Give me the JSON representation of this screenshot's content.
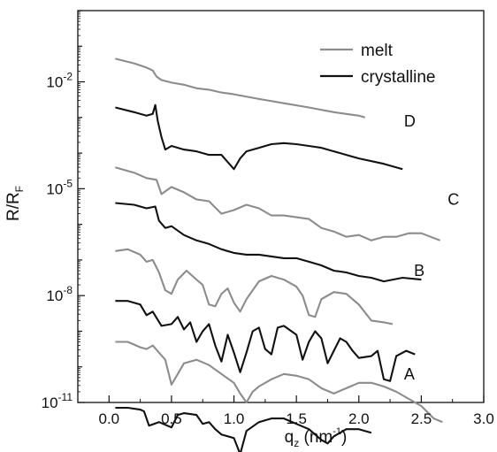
{
  "chart_data": {
    "type": "line",
    "xlabel": {
      "main": "q",
      "sub": "z",
      "unit_open": " (nm",
      "unit_sup": "-1",
      "unit_close": ")"
    },
    "ylabel": {
      "main": "R/R",
      "sub": "F"
    },
    "xlim": [
      -0.25,
      3.0
    ],
    "ylim_log10": [
      -11,
      0
    ],
    "log_y": true,
    "x_ticks": [
      {
        "value": 0.0,
        "label": "0.0"
      },
      {
        "value": 0.5,
        "label": "0.5"
      },
      {
        "value": 1.0,
        "label": "1.0"
      },
      {
        "value": 1.5,
        "label": "1.5"
      },
      {
        "value": 2.0,
        "label": "2.0"
      },
      {
        "value": 2.5,
        "label": "2.5"
      },
      {
        "value": 3.0,
        "label": "3.0"
      }
    ],
    "y_ticks": [
      {
        "exp": -11,
        "base": "10",
        "label": "-11"
      },
      {
        "exp": -8,
        "base": "10",
        "label": "-8"
      },
      {
        "exp": -5,
        "base": "10",
        "label": "-5"
      },
      {
        "exp": -2,
        "base": "10",
        "label": "-2"
      }
    ],
    "legend": {
      "placement": "top-right",
      "entries": [
        {
          "label": "melt",
          "color": "#8c8c8c"
        },
        {
          "label": "crystalline",
          "color": "#111111"
        }
      ]
    },
    "annotations": [
      {
        "text": "D",
        "x": 2.22,
        "log10y": -3.1
      },
      {
        "text": "C",
        "x": 2.57,
        "log10y": -5.3
      },
      {
        "text": "B",
        "x": 2.3,
        "log10y": -7.3
      },
      {
        "text": "A",
        "x": 2.22,
        "log10y": -10.2
      }
    ],
    "series": [
      {
        "group": "D",
        "kind": "melt",
        "color": "#8c8c8c",
        "points": [
          [
            0.05,
            -1.35
          ],
          [
            0.2,
            -1.48
          ],
          [
            0.3,
            -1.6
          ],
          [
            0.35,
            -1.68
          ],
          [
            0.38,
            -1.85
          ],
          [
            0.42,
            -1.95
          ],
          [
            0.5,
            -2.02
          ],
          [
            0.6,
            -2.08
          ],
          [
            0.7,
            -2.18
          ],
          [
            0.8,
            -2.22
          ],
          [
            0.9,
            -2.3
          ],
          [
            1.0,
            -2.35
          ],
          [
            1.2,
            -2.48
          ],
          [
            1.4,
            -2.6
          ],
          [
            1.6,
            -2.72
          ],
          [
            1.8,
            -2.85
          ],
          [
            2.0,
            -2.95
          ],
          [
            2.05,
            -3.0
          ]
        ]
      },
      {
        "group": "D",
        "kind": "crystalline",
        "color": "#111111",
        "points": [
          [
            0.05,
            -2.72
          ],
          [
            0.2,
            -2.85
          ],
          [
            0.3,
            -2.95
          ],
          [
            0.35,
            -2.9
          ],
          [
            0.37,
            -2.65
          ],
          [
            0.39,
            -3.1
          ],
          [
            0.42,
            -3.55
          ],
          [
            0.45,
            -3.9
          ],
          [
            0.5,
            -3.8
          ],
          [
            0.6,
            -3.9
          ],
          [
            0.7,
            -3.95
          ],
          [
            0.8,
            -4.05
          ],
          [
            0.9,
            -4.05
          ],
          [
            1.0,
            -4.45
          ],
          [
            1.05,
            -4.15
          ],
          [
            1.1,
            -3.95
          ],
          [
            1.2,
            -3.85
          ],
          [
            1.3,
            -3.75
          ],
          [
            1.4,
            -3.72
          ],
          [
            1.5,
            -3.75
          ],
          [
            1.6,
            -3.8
          ],
          [
            1.7,
            -3.85
          ],
          [
            1.8,
            -3.95
          ],
          [
            1.9,
            -4.05
          ],
          [
            2.0,
            -4.15
          ],
          [
            2.2,
            -4.3
          ],
          [
            2.35,
            -4.45
          ]
        ]
      },
      {
        "group": "C",
        "kind": "melt",
        "color": "#8c8c8c",
        "points": [
          [
            0.05,
            -4.4
          ],
          [
            0.2,
            -4.55
          ],
          [
            0.3,
            -4.7
          ],
          [
            0.38,
            -4.75
          ],
          [
            0.42,
            -5.15
          ],
          [
            0.5,
            -4.95
          ],
          [
            0.6,
            -5.1
          ],
          [
            0.7,
            -5.3
          ],
          [
            0.8,
            -5.35
          ],
          [
            0.9,
            -5.7
          ],
          [
            1.0,
            -5.6
          ],
          [
            1.1,
            -5.45
          ],
          [
            1.2,
            -5.55
          ],
          [
            1.3,
            -5.75
          ],
          [
            1.4,
            -5.75
          ],
          [
            1.5,
            -5.8
          ],
          [
            1.6,
            -5.85
          ],
          [
            1.7,
            -6.1
          ],
          [
            1.8,
            -6.2
          ],
          [
            1.9,
            -6.35
          ],
          [
            2.0,
            -6.3
          ],
          [
            2.1,
            -6.45
          ],
          [
            2.2,
            -6.35
          ],
          [
            2.3,
            -6.35
          ],
          [
            2.4,
            -6.25
          ],
          [
            2.5,
            -6.25
          ],
          [
            2.65,
            -6.45
          ]
        ]
      },
      {
        "group": "C",
        "kind": "crystalline",
        "color": "#111111",
        "points": [
          [
            0.05,
            -5.4
          ],
          [
            0.2,
            -5.45
          ],
          [
            0.3,
            -5.55
          ],
          [
            0.37,
            -5.5
          ],
          [
            0.4,
            -5.9
          ],
          [
            0.45,
            -6.1
          ],
          [
            0.5,
            -6.05
          ],
          [
            0.6,
            -6.3
          ],
          [
            0.7,
            -6.45
          ],
          [
            0.8,
            -6.55
          ],
          [
            0.9,
            -6.7
          ],
          [
            1.0,
            -6.8
          ],
          [
            1.1,
            -6.85
          ],
          [
            1.2,
            -6.85
          ],
          [
            1.3,
            -6.9
          ],
          [
            1.4,
            -6.95
          ],
          [
            1.5,
            -6.95
          ],
          [
            1.6,
            -7.05
          ],
          [
            1.7,
            -7.15
          ],
          [
            1.8,
            -7.3
          ],
          [
            1.9,
            -7.35
          ],
          [
            2.0,
            -7.45
          ],
          [
            2.1,
            -7.5
          ],
          [
            2.2,
            -7.6
          ],
          [
            2.35,
            -7.5
          ],
          [
            2.5,
            -7.55
          ]
        ]
      },
      {
        "group": "B",
        "kind": "melt",
        "color": "#8c8c8c",
        "points": [
          [
            0.05,
            -6.75
          ],
          [
            0.15,
            -6.7
          ],
          [
            0.25,
            -6.85
          ],
          [
            0.3,
            -7.05
          ],
          [
            0.35,
            -7.0
          ],
          [
            0.4,
            -7.35
          ],
          [
            0.45,
            -7.85
          ],
          [
            0.5,
            -7.95
          ],
          [
            0.55,
            -7.55
          ],
          [
            0.62,
            -7.3
          ],
          [
            0.7,
            -7.55
          ],
          [
            0.75,
            -7.7
          ],
          [
            0.8,
            -8.25
          ],
          [
            0.85,
            -8.3
          ],
          [
            0.9,
            -7.95
          ],
          [
            0.95,
            -7.8
          ],
          [
            1.0,
            -8.2
          ],
          [
            1.05,
            -8.45
          ],
          [
            1.1,
            -8.1
          ],
          [
            1.2,
            -7.6
          ],
          [
            1.3,
            -7.45
          ],
          [
            1.4,
            -7.55
          ],
          [
            1.5,
            -7.75
          ],
          [
            1.55,
            -8.0
          ],
          [
            1.6,
            -8.55
          ],
          [
            1.65,
            -8.6
          ],
          [
            1.7,
            -8.1
          ],
          [
            1.8,
            -7.9
          ],
          [
            1.9,
            -7.95
          ],
          [
            2.0,
            -8.25
          ],
          [
            2.1,
            -8.7
          ],
          [
            2.2,
            -8.75
          ],
          [
            2.27,
            -8.8
          ]
        ]
      },
      {
        "group": "B",
        "kind": "crystalline",
        "color": "#111111",
        "points": [
          [
            0.05,
            -8.15
          ],
          [
            0.15,
            -8.15
          ],
          [
            0.25,
            -8.25
          ],
          [
            0.3,
            -8.55
          ],
          [
            0.35,
            -8.45
          ],
          [
            0.42,
            -8.85
          ],
          [
            0.5,
            -8.8
          ],
          [
            0.55,
            -8.6
          ],
          [
            0.6,
            -8.95
          ],
          [
            0.65,
            -8.75
          ],
          [
            0.7,
            -9.3
          ],
          [
            0.75,
            -9.0
          ],
          [
            0.8,
            -8.8
          ],
          [
            0.85,
            -9.4
          ],
          [
            0.9,
            -9.85
          ],
          [
            0.95,
            -9.1
          ],
          [
            1.0,
            -9.6
          ],
          [
            1.05,
            -10.15
          ],
          [
            1.1,
            -9.6
          ],
          [
            1.15,
            -9.0
          ],
          [
            1.2,
            -8.9
          ],
          [
            1.25,
            -9.5
          ],
          [
            1.3,
            -9.65
          ],
          [
            1.35,
            -8.9
          ],
          [
            1.4,
            -8.85
          ],
          [
            1.5,
            -9.1
          ],
          [
            1.55,
            -9.8
          ],
          [
            1.6,
            -9.3
          ],
          [
            1.65,
            -9.0
          ],
          [
            1.7,
            -9.2
          ],
          [
            1.75,
            -9.9
          ],
          [
            1.8,
            -9.55
          ],
          [
            1.85,
            -9.2
          ],
          [
            1.9,
            -9.3
          ],
          [
            1.95,
            -9.55
          ],
          [
            2.0,
            -9.75
          ],
          [
            2.1,
            -9.7
          ],
          [
            2.15,
            -9.55
          ],
          [
            2.2,
            -10.35
          ],
          [
            2.25,
            -10.4
          ],
          [
            2.3,
            -9.7
          ],
          [
            2.38,
            -9.55
          ],
          [
            2.45,
            -9.65
          ]
        ]
      },
      {
        "group": "A",
        "kind": "melt",
        "color": "#8c8c8c",
        "points": [
          [
            0.05,
            -9.3
          ],
          [
            0.15,
            -9.3
          ],
          [
            0.25,
            -9.45
          ],
          [
            0.3,
            -9.5
          ],
          [
            0.35,
            -9.4
          ],
          [
            0.45,
            -9.8
          ],
          [
            0.5,
            -10.5
          ],
          [
            0.55,
            -10.2
          ],
          [
            0.6,
            -9.9
          ],
          [
            0.7,
            -9.8
          ],
          [
            0.8,
            -9.95
          ],
          [
            0.9,
            -10.2
          ],
          [
            1.0,
            -10.45
          ],
          [
            1.05,
            -10.75
          ],
          [
            1.1,
            -11.0
          ],
          [
            1.15,
            -10.7
          ],
          [
            1.2,
            -10.55
          ],
          [
            1.3,
            -10.35
          ],
          [
            1.4,
            -10.2
          ],
          [
            1.5,
            -10.25
          ],
          [
            1.6,
            -10.35
          ],
          [
            1.7,
            -10.6
          ],
          [
            1.8,
            -10.75
          ],
          [
            1.9,
            -10.6
          ],
          [
            2.0,
            -10.45
          ],
          [
            2.1,
            -10.45
          ],
          [
            2.2,
            -10.55
          ],
          [
            2.3,
            -10.7
          ],
          [
            2.4,
            -10.9
          ],
          [
            2.5,
            -11.1
          ],
          [
            2.6,
            -11.45
          ],
          [
            2.67,
            -11.55
          ]
        ]
      },
      {
        "group": "A",
        "kind": "crystalline",
        "color": "#111111",
        "points": [
          [
            0.05,
            -11.15
          ],
          [
            0.15,
            -11.15
          ],
          [
            0.25,
            -11.2
          ],
          [
            0.28,
            -11.25
          ],
          [
            0.32,
            -11.65
          ],
          [
            0.4,
            -11.55
          ],
          [
            0.5,
            -11.7
          ],
          [
            0.55,
            -11.35
          ],
          [
            0.6,
            -11.3
          ],
          [
            0.7,
            -11.35
          ],
          [
            0.75,
            -11.6
          ],
          [
            0.8,
            -11.55
          ],
          [
            0.85,
            -11.75
          ],
          [
            0.9,
            -11.9
          ],
          [
            1.0,
            -12.0
          ],
          [
            1.05,
            -12.45
          ],
          [
            1.1,
            -11.8
          ],
          [
            1.2,
            -11.55
          ],
          [
            1.3,
            -11.45
          ],
          [
            1.4,
            -11.45
          ],
          [
            1.5,
            -11.6
          ],
          [
            1.6,
            -11.75
          ],
          [
            1.7,
            -12.05
          ],
          [
            1.75,
            -12.15
          ],
          [
            1.8,
            -11.95
          ],
          [
            1.9,
            -11.75
          ],
          [
            2.0,
            -11.75
          ],
          [
            2.05,
            -11.8
          ],
          [
            2.1,
            -11.85
          ]
        ]
      }
    ]
  }
}
